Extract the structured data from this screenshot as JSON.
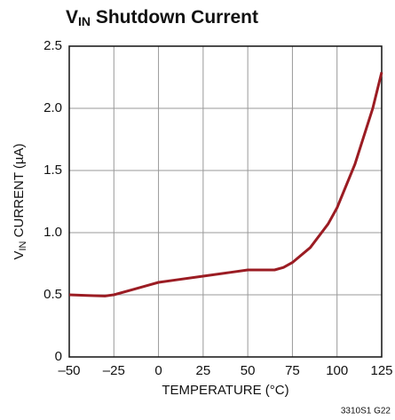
{
  "chart_data": {
    "type": "line",
    "title": [
      "V",
      "IN",
      " Shutdown Current"
    ],
    "x_label": "TEMPERATURE (°C)",
    "y_label": [
      "V",
      "IN",
      " CURRENT (µA)"
    ],
    "footnote": "3310S1 G22",
    "x": [
      -50,
      -40,
      -30,
      -25,
      -15,
      -5,
      0,
      10,
      25,
      40,
      50,
      60,
      65,
      70,
      75,
      85,
      95,
      100,
      110,
      120,
      125
    ],
    "values": [
      0.5,
      0.495,
      0.49,
      0.5,
      0.54,
      0.58,
      0.6,
      0.62,
      0.65,
      0.68,
      0.7,
      0.7,
      0.7,
      0.72,
      0.76,
      0.88,
      1.07,
      1.2,
      1.55,
      2.0,
      2.29
    ],
    "color": "#9b1c23",
    "xlim": [
      -50,
      125
    ],
    "xticks": [
      {
        "value": -50,
        "label": "–50"
      },
      {
        "value": -25,
        "label": "–25"
      },
      0,
      25,
      50,
      75,
      100,
      125
    ],
    "ylim": [
      0,
      2.5
    ],
    "yticks": [
      0,
      0.5,
      {
        "value": 1,
        "label": "1.0"
      },
      1.5,
      {
        "value": 2,
        "label": "2.0"
      },
      2.5
    ],
    "grid": true
  }
}
